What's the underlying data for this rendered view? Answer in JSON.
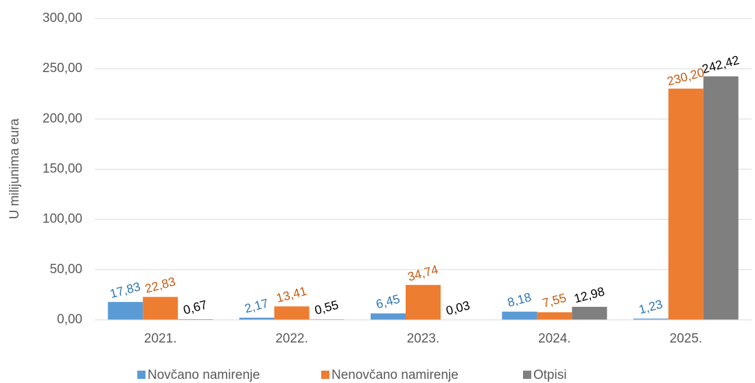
{
  "chart_data": {
    "type": "bar",
    "y_label": "U milijunima eura",
    "categories": [
      "2021.",
      "2022.",
      "2023.",
      "2024.",
      "2025."
    ],
    "series": [
      {
        "name": "Novčano namirenje",
        "color": "#5b9bd5",
        "label_color": "#2e75b6",
        "values": [
          17.83,
          2.17,
          6.45,
          8.18,
          1.23
        ],
        "value_labels": [
          "17,83",
          "2,17",
          "6,45",
          "8,18",
          "1,23"
        ]
      },
      {
        "name": "Nenovčano namirenje",
        "color": "#ed7d31",
        "label_color": "#c55a11",
        "values": [
          22.83,
          13.41,
          34.74,
          7.55,
          230.2
        ],
        "value_labels": [
          "22,83",
          "13,41",
          "34,74",
          "7,55",
          "230,20"
        ]
      },
      {
        "name": "Otpisi",
        "color": "#7f7f7f",
        "label_color": "#000000",
        "values": [
          0.67,
          0.55,
          0.03,
          12.98,
          242.42
        ],
        "value_labels": [
          "0,67",
          "0,55",
          "0,03",
          "12,98",
          "242,42"
        ]
      }
    ],
    "ylim": [
      0,
      300
    ],
    "yticks": [
      {
        "value": 0,
        "label": "0,00"
      },
      {
        "value": 50,
        "label": "50,00"
      },
      {
        "value": 100,
        "label": "100,00"
      },
      {
        "value": 150,
        "label": "150,00"
      },
      {
        "value": 200,
        "label": "200,00"
      },
      {
        "value": 250,
        "label": "250,00"
      },
      {
        "value": 300,
        "label": "300,00"
      }
    ],
    "grid": true,
    "legend": "bottom"
  }
}
